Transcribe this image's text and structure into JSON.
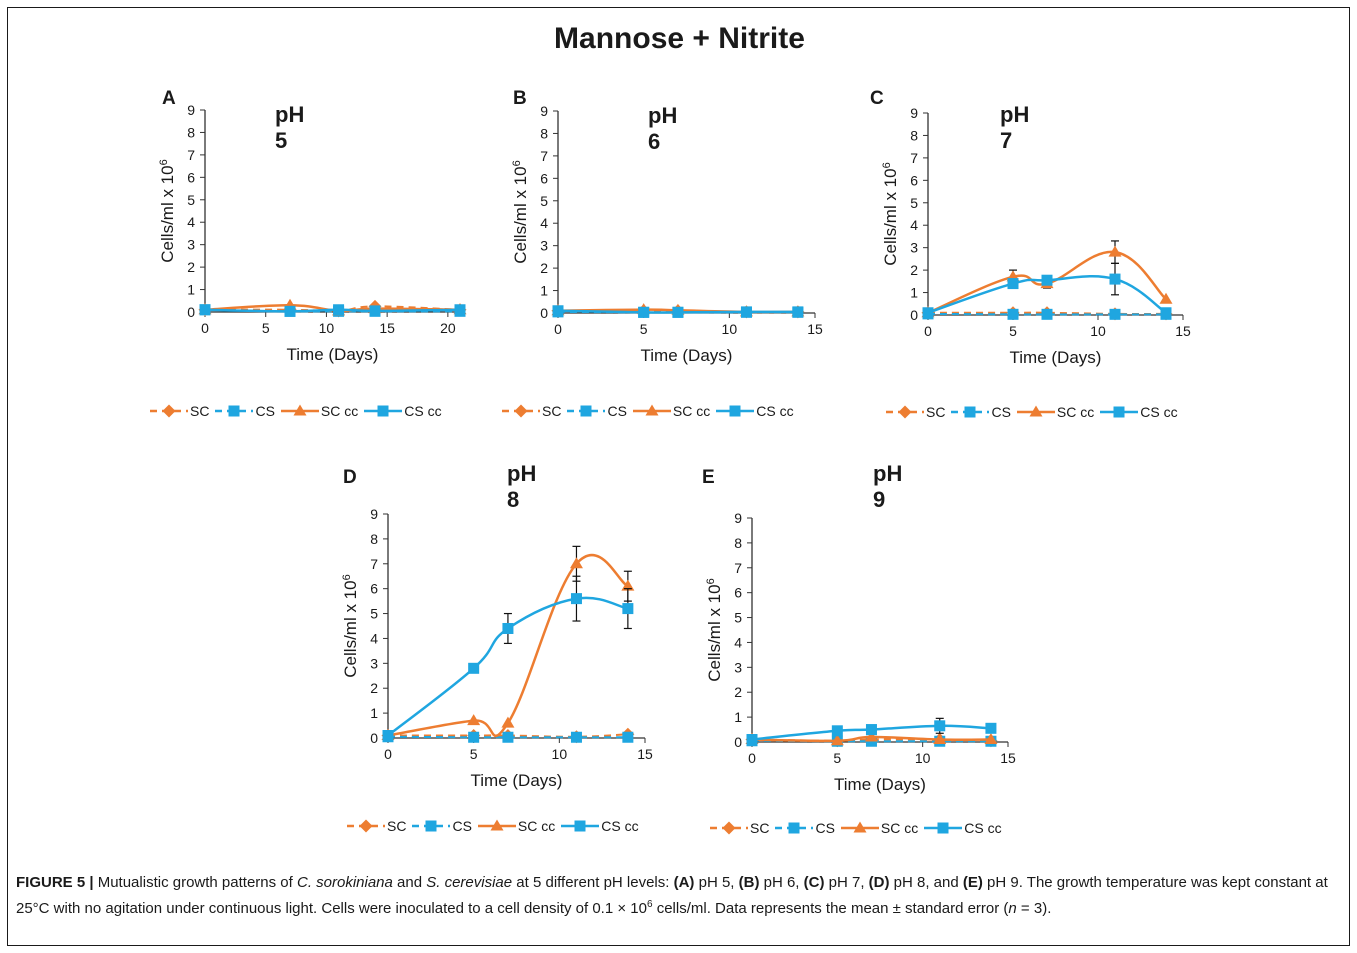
{
  "title": "Mannose + Nitrite",
  "colors": {
    "orange": "#ED7D31",
    "blue": "#1FA6E0",
    "axis": "#333333"
  },
  "legend_labels": [
    "SC",
    "CS",
    "SC cc",
    "CS cc"
  ],
  "caption": {
    "lead": "FIGURE 5 |",
    "t1": " Mutualistic growth patterns of ",
    "sp1": "C. sorokiniana",
    "t2": " and ",
    "sp2": "S. cerevisiae",
    "t3": " at 5 different pH levels: ",
    "A": "(A)",
    "a_txt": " pH 5, ",
    "B": "(B)",
    "b_txt": " pH 6, ",
    "C": "(C)",
    "c_txt": " pH 7, ",
    "D": "(D)",
    "d_txt": " pH 8, and ",
    "E": "(E)",
    "e_txt": " pH 9. The growth temperature was kept constant at 25°C with no agitation under continuous light. Cells were inoculated to a cell density of 0.1 × 10",
    "sup": "6",
    "t4": " cells/ml. Data represents the mean ± standard error (",
    "n": "n",
    "t5": " = 3)."
  },
  "chart_data": [
    {
      "type": "line",
      "panel": "A",
      "title": "pH 5",
      "xlabel": "Time (Days)",
      "ylabel": "Cells/ml x 10",
      "ylabel_sup": "6",
      "xlim": [
        0,
        21
      ],
      "ylim": [
        0,
        9
      ],
      "xticks": [
        0,
        5,
        10,
        15,
        20
      ],
      "yticks": [
        0,
        1,
        2,
        3,
        4,
        5,
        6,
        7,
        8,
        9
      ],
      "series": [
        {
          "name": "SC",
          "x": [
            0,
            7,
            11,
            14,
            21
          ],
          "values": [
            0.1,
            0.1,
            0.05,
            0.25,
            0.1
          ]
        },
        {
          "name": "CS",
          "x": [
            0,
            7,
            11,
            14,
            21
          ],
          "values": [
            0.1,
            0.03,
            0.03,
            0.03,
            0.03
          ]
        },
        {
          "name": "SC cc",
          "x": [
            0,
            7,
            11,
            14,
            21
          ],
          "values": [
            0.1,
            0.3,
            0.05,
            0.15,
            0.1
          ]
        },
        {
          "name": "CS cc",
          "x": [
            0,
            7,
            11,
            14,
            21
          ],
          "values": [
            0.1,
            0.03,
            0.1,
            0.05,
            0.1
          ]
        }
      ]
    },
    {
      "type": "line",
      "panel": "B",
      "title": "pH 6",
      "xlabel": "Time (Days)",
      "ylabel": "Cells/ml x 10",
      "ylabel_sup": "6",
      "xlim": [
        0,
        15
      ],
      "ylim": [
        0,
        9
      ],
      "xticks": [
        0,
        5,
        10,
        15
      ],
      "yticks": [
        0,
        1,
        2,
        3,
        4,
        5,
        6,
        7,
        8,
        9
      ],
      "series": [
        {
          "name": "SC",
          "x": [
            0,
            5,
            7,
            11,
            14
          ],
          "values": [
            0.1,
            0.1,
            0.1,
            0.05,
            0.05
          ]
        },
        {
          "name": "CS",
          "x": [
            0,
            5,
            7,
            11,
            14
          ],
          "values": [
            0.05,
            0.03,
            0.03,
            0.03,
            0.03
          ]
        },
        {
          "name": "SC cc",
          "x": [
            0,
            5,
            7,
            11,
            14
          ],
          "values": [
            0.1,
            0.15,
            0.12,
            0.05,
            0.05
          ]
        },
        {
          "name": "CS cc",
          "x": [
            0,
            5,
            7,
            11,
            14
          ],
          "values": [
            0.1,
            0.03,
            0.03,
            0.05,
            0.05
          ]
        }
      ]
    },
    {
      "type": "line",
      "panel": "C",
      "title": "pH 7",
      "xlabel": "Time (Days)",
      "ylabel": "Cells/ml x 10",
      "ylabel_sup": "6",
      "xlim": [
        0,
        15
      ],
      "ylim": [
        0,
        9
      ],
      "xticks": [
        0,
        5,
        10,
        15
      ],
      "yticks": [
        0,
        1,
        2,
        3,
        4,
        5,
        6,
        7,
        8,
        9
      ],
      "series": [
        {
          "name": "SC",
          "x": [
            0,
            5,
            7,
            11,
            14
          ],
          "values": [
            0.1,
            0.1,
            0.1,
            0.05,
            0.05
          ]
        },
        {
          "name": "CS",
          "x": [
            0,
            5,
            7,
            11,
            14
          ],
          "values": [
            0.05,
            0.03,
            0.03,
            0.03,
            0.03
          ]
        },
        {
          "name": "SC cc",
          "x": [
            0,
            5,
            7,
            11,
            14
          ],
          "values": [
            0.1,
            1.7,
            1.4,
            2.8,
            0.7
          ],
          "err": [
            0,
            0.3,
            0.2,
            0.5,
            0
          ]
        },
        {
          "name": "CS cc",
          "x": [
            0,
            5,
            7,
            11,
            14
          ],
          "values": [
            0.1,
            1.4,
            1.55,
            1.6,
            0.1
          ],
          "err": [
            0,
            0.2,
            0.1,
            0.7,
            0
          ]
        }
      ]
    },
    {
      "type": "line",
      "panel": "D",
      "title": "pH 8",
      "xlabel": "Time (Days)",
      "ylabel": "Cells/ml x 10",
      "ylabel_sup": "6",
      "xlim": [
        0,
        15
      ],
      "ylim": [
        0,
        9
      ],
      "xticks": [
        0,
        5,
        10,
        15
      ],
      "yticks": [
        0,
        1,
        2,
        3,
        4,
        5,
        6,
        7,
        8,
        9
      ],
      "series": [
        {
          "name": "SC",
          "x": [
            0,
            5,
            7,
            11,
            14
          ],
          "values": [
            0.1,
            0.1,
            0.1,
            0.05,
            0.15
          ]
        },
        {
          "name": "CS",
          "x": [
            0,
            5,
            7,
            11,
            14
          ],
          "values": [
            0.05,
            0.03,
            0.03,
            0.03,
            0.03
          ]
        },
        {
          "name": "SC cc",
          "x": [
            0,
            5,
            7,
            11,
            14
          ],
          "values": [
            0.1,
            0.7,
            0.6,
            7.0,
            6.1
          ],
          "err": [
            0,
            0,
            0,
            0.7,
            0.6
          ]
        },
        {
          "name": "CS cc",
          "x": [
            0,
            5,
            7,
            11,
            14
          ],
          "values": [
            0.1,
            2.8,
            4.4,
            5.6,
            5.2
          ],
          "err": [
            0,
            0,
            0.6,
            0.9,
            0.8
          ]
        }
      ]
    },
    {
      "type": "line",
      "panel": "E",
      "title": "pH 9",
      "xlabel": "Time (Days)",
      "ylabel": "Cells/ml x 10",
      "ylabel_sup": "6",
      "xlim": [
        0,
        15
      ],
      "ylim": [
        0,
        9
      ],
      "xticks": [
        0,
        5,
        10,
        15
      ],
      "yticks": [
        0,
        1,
        2,
        3,
        4,
        5,
        6,
        7,
        8,
        9
      ],
      "series": [
        {
          "name": "SC",
          "x": [
            0,
            5,
            7,
            11,
            14
          ],
          "values": [
            0.1,
            0.05,
            0.1,
            0.1,
            0.05
          ]
        },
        {
          "name": "CS",
          "x": [
            0,
            5,
            7,
            11,
            14
          ],
          "values": [
            0.05,
            0.03,
            0.03,
            0.03,
            0.03
          ]
        },
        {
          "name": "SC cc",
          "x": [
            0,
            5,
            7,
            11,
            14
          ],
          "values": [
            0.1,
            0.05,
            0.2,
            0.1,
            0.1
          ]
        },
        {
          "name": "CS cc",
          "x": [
            0,
            5,
            7,
            11,
            14
          ],
          "values": [
            0.1,
            0.45,
            0.5,
            0.65,
            0.55
          ],
          "err": [
            0,
            0,
            0,
            0.3,
            0
          ]
        }
      ]
    }
  ]
}
